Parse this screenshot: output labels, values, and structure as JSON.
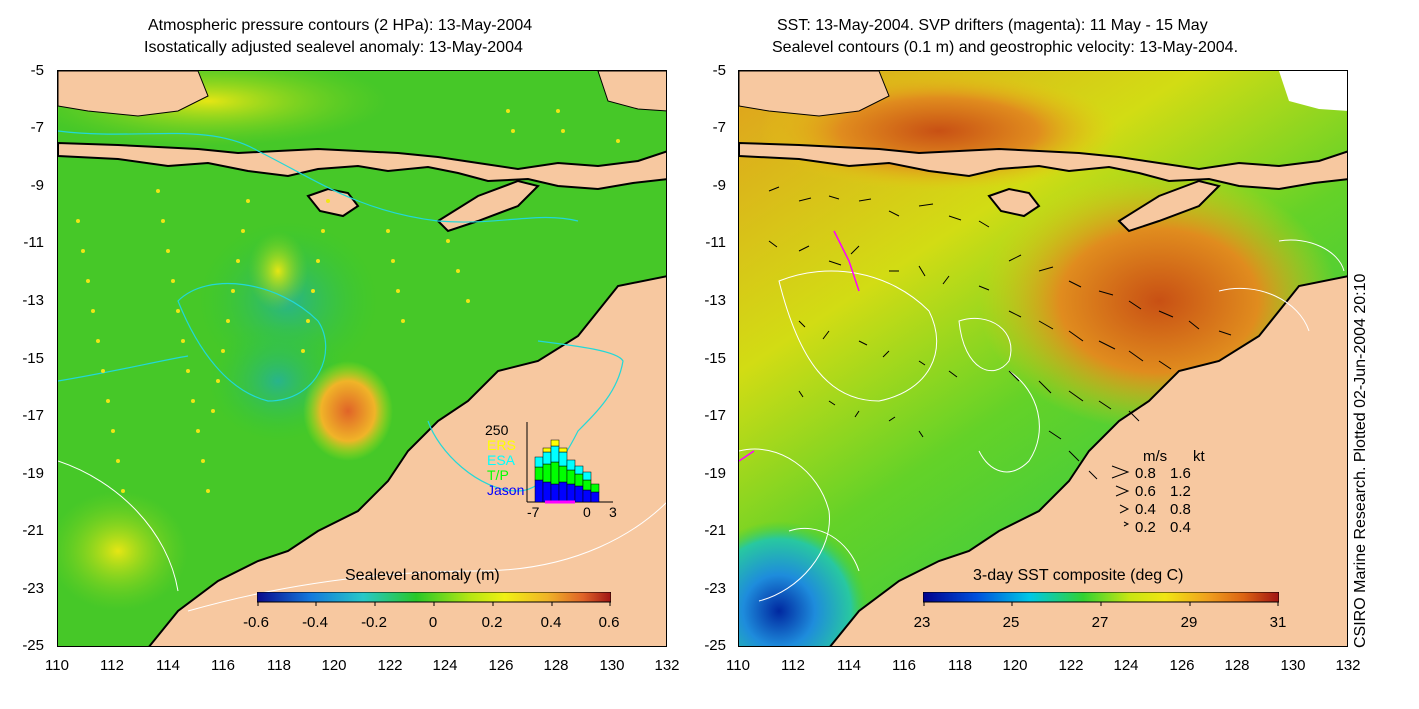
{
  "left_panel": {
    "title_line1": "Atmospheric pressure contours (2 HPa): 13-May-2004",
    "title_line2": "Isostatically adjusted sealevel anomaly: 13-May-2004",
    "colorbar_title": "Sealevel anomaly (m)",
    "colorbar_ticks": [
      "-0.6",
      "-0.4",
      "-0.2",
      "0",
      "0.2",
      "0.4",
      "0.6"
    ],
    "inset": {
      "ymax_label": "250",
      "legend": [
        "ERS",
        "ESA",
        "T/P",
        "Jason"
      ],
      "legend_colors": [
        "#ffff00",
        "#00ffff",
        "#00ff00",
        "#0000ff"
      ],
      "x_labels": [
        "-7",
        "0",
        "3"
      ]
    }
  },
  "right_panel": {
    "title_line1": "SST: 13-May-2004. SVP drifters (magenta): 11 May - 15 May",
    "title_line2": "Sealevel contours (0.1 m) and geostrophic velocity: 13-May-2004.",
    "colorbar_title": "3-day SST composite (deg C)",
    "colorbar_ticks": [
      "23",
      "25",
      "27",
      "29",
      "31"
    ],
    "velocity_legend": {
      "header_ms": "m/s",
      "header_kt": "kt",
      "rows": [
        {
          "ms": "0.8",
          "kt": "1.6"
        },
        {
          "ms": "0.6",
          "kt": "1.2"
        },
        {
          "ms": "0.4",
          "kt": "0.8"
        },
        {
          "ms": "0.2",
          "kt": "0.4"
        }
      ]
    }
  },
  "axes": {
    "y_ticks": [
      "-5",
      "-7",
      "-9",
      "-11",
      "-13",
      "-15",
      "-17",
      "-19",
      "-21",
      "-23",
      "-25"
    ],
    "x_ticks": [
      "110",
      "112",
      "114",
      "116",
      "118",
      "120",
      "122",
      "124",
      "126",
      "128",
      "130",
      "132"
    ]
  },
  "credit": "CSIRO Marine Research. Plotted 02-Jun-2004 20:10",
  "colors": {
    "land": "#f7c8a0",
    "sla_scale": [
      "#0a0a8c",
      "#1478dc",
      "#28c8c8",
      "#28c828",
      "#b4e614",
      "#f0f014",
      "#f0b428",
      "#e06428",
      "#a01414"
    ],
    "sst_scale": [
      "#00008c",
      "#0050dc",
      "#00c8e6",
      "#32d232",
      "#c8e614",
      "#f0e614",
      "#f0a01e",
      "#dc6414",
      "#a01414"
    ]
  }
}
